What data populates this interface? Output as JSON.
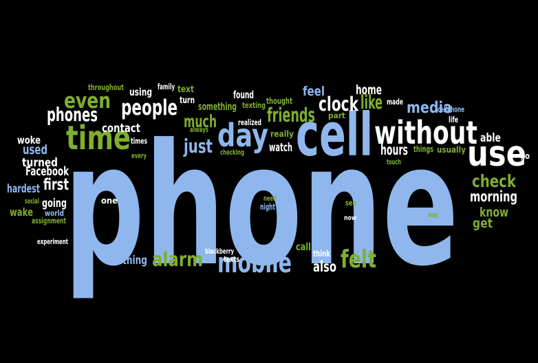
{
  "palette": {
    "background": "#000000",
    "blue": "#8FB7EE",
    "green": "#7FAF2E",
    "white": "#FFFFFF"
  },
  "words": [
    {
      "text": "phone",
      "color": "blue"
    },
    {
      "text": "cell",
      "color": "blue"
    },
    {
      "text": "without",
      "color": "white"
    },
    {
      "text": "use",
      "color": "white"
    },
    {
      "text": "time",
      "color": "green"
    },
    {
      "text": "day",
      "color": "blue"
    },
    {
      "text": "mobile",
      "color": "blue"
    },
    {
      "text": "felt",
      "color": "green"
    },
    {
      "text": "alarm",
      "color": "green"
    },
    {
      "text": "people",
      "color": "white"
    },
    {
      "text": "even",
      "color": "green"
    },
    {
      "text": "phones",
      "color": "white"
    },
    {
      "text": "clock",
      "color": "white"
    },
    {
      "text": "friends",
      "color": "green"
    },
    {
      "text": "media",
      "color": "blue"
    },
    {
      "text": "check",
      "color": "green"
    },
    {
      "text": "morning",
      "color": "white"
    },
    {
      "text": "just",
      "color": "blue"
    },
    {
      "text": "much",
      "color": "green"
    },
    {
      "text": "first",
      "color": "white"
    },
    {
      "text": "like",
      "color": "green"
    },
    {
      "text": "feel",
      "color": "blue"
    },
    {
      "text": "hours",
      "color": "white"
    },
    {
      "text": "home",
      "color": "white"
    },
    {
      "text": "know",
      "color": "green"
    },
    {
      "text": "get",
      "color": "green"
    },
    {
      "text": "able",
      "color": "white"
    },
    {
      "text": "thing",
      "color": "blue"
    },
    {
      "text": "also",
      "color": "white"
    },
    {
      "text": "contact",
      "color": "white"
    },
    {
      "text": "watch",
      "color": "white"
    },
    {
      "text": "used",
      "color": "blue"
    },
    {
      "text": "woke",
      "color": "white"
    },
    {
      "text": "turned",
      "color": "white"
    },
    {
      "text": "Facebook",
      "color": "white"
    },
    {
      "text": "hardest",
      "color": "blue"
    },
    {
      "text": "going",
      "color": "white"
    },
    {
      "text": "wake",
      "color": "green"
    },
    {
      "text": "using",
      "color": "white"
    },
    {
      "text": "found",
      "color": "white"
    },
    {
      "text": "thought",
      "color": "green"
    },
    {
      "text": "something",
      "color": "green"
    },
    {
      "text": "texting",
      "color": "green"
    },
    {
      "text": "turn",
      "color": "white"
    },
    {
      "text": "text",
      "color": "green"
    },
    {
      "text": "call",
      "color": "green"
    },
    {
      "text": "think",
      "color": "white"
    },
    {
      "text": "part",
      "color": "green"
    },
    {
      "text": "usually",
      "color": "green"
    },
    {
      "text": "one",
      "color": "white"
    },
    {
      "text": "throughout",
      "color": "green"
    },
    {
      "text": "family",
      "color": "white"
    },
    {
      "text": "made",
      "color": "white"
    },
    {
      "text": "cellphone",
      "color": "blue"
    },
    {
      "text": "life",
      "color": "white"
    },
    {
      "text": "go",
      "color": "white"
    },
    {
      "text": "realized",
      "color": "white"
    },
    {
      "text": "really",
      "color": "green"
    },
    {
      "text": "checking",
      "color": "green"
    },
    {
      "text": "always",
      "color": "green"
    },
    {
      "text": "times",
      "color": "white"
    },
    {
      "text": "every",
      "color": "green"
    },
    {
      "text": "things",
      "color": "green"
    },
    {
      "text": "touch",
      "color": "green"
    },
    {
      "text": "need",
      "color": "green"
    },
    {
      "text": "night",
      "color": "blue"
    },
    {
      "text": "see",
      "color": "green"
    },
    {
      "text": "now",
      "color": "white"
    },
    {
      "text": "way",
      "color": "green"
    },
    {
      "text": "social",
      "color": "green"
    },
    {
      "text": "world",
      "color": "blue"
    },
    {
      "text": "assignment",
      "color": "green"
    },
    {
      "text": "experiment",
      "color": "white"
    },
    {
      "text": "blackberry",
      "color": "white"
    },
    {
      "text": "texts",
      "color": "white"
    }
  ]
}
